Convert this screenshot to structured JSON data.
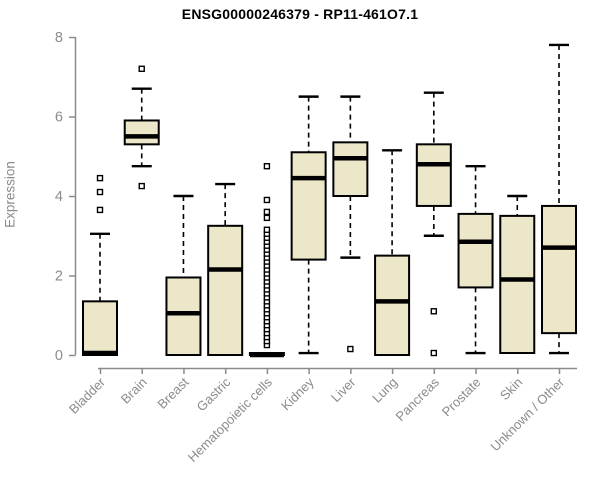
{
  "chart_data": {
    "type": "boxplot",
    "title": "ENSG00000246379 - RP11-461O7.1",
    "ylabel": "Expression",
    "xlabel": "",
    "ylim": [
      0,
      8
    ],
    "yticks": [
      0,
      2,
      4,
      6,
      8
    ],
    "grid": false,
    "legend": "none",
    "categories": [
      "Bladder",
      "Brain",
      "Breast",
      "Gastric",
      "Hematopoietic cells",
      "Kidney",
      "Liver",
      "Lung",
      "Pancreas",
      "Prostate",
      "Skin",
      "Unknown / Other"
    ],
    "boxes": [
      {
        "category": "Bladder",
        "whisker_low": 0,
        "q1": 0,
        "median": 0.05,
        "q3": 1.35,
        "whisker_high": 3.05,
        "outliers": [
          3.65,
          4.1,
          4.45
        ]
      },
      {
        "category": "Brain",
        "whisker_low": 4.75,
        "q1": 5.3,
        "median": 5.5,
        "q3": 5.9,
        "whisker_high": 6.7,
        "outliers": [
          4.25,
          7.2
        ]
      },
      {
        "category": "Breast",
        "whisker_low": 0,
        "q1": 0,
        "median": 1.05,
        "q3": 1.95,
        "whisker_high": 4.0,
        "outliers": []
      },
      {
        "category": "Gastric",
        "whisker_low": 0,
        "q1": 0,
        "median": 2.15,
        "q3": 3.25,
        "whisker_high": 4.3,
        "outliers": []
      },
      {
        "category": "Hematopoietic cells",
        "whisker_low": 0,
        "q1": 0,
        "median": 0,
        "q3": 0.05,
        "whisker_high": 0.05,
        "outliers": [
          0.25,
          0.35,
          0.45,
          0.55,
          0.65,
          0.75,
          0.85,
          0.95,
          1.05,
          1.15,
          1.25,
          1.35,
          1.45,
          1.55,
          1.65,
          1.75,
          1.85,
          1.95,
          2.05,
          2.15,
          2.25,
          2.35,
          2.45,
          2.55,
          2.65,
          2.75,
          2.85,
          2.95,
          3.05,
          3.15,
          3.45,
          3.6,
          3.9,
          4.75
        ]
      },
      {
        "category": "Kidney",
        "whisker_low": 0.05,
        "q1": 2.4,
        "median": 4.45,
        "q3": 5.1,
        "whisker_high": 6.5,
        "outliers": []
      },
      {
        "category": "Liver",
        "whisker_low": 2.45,
        "q1": 4.0,
        "median": 4.95,
        "q3": 5.35,
        "whisker_high": 6.5,
        "outliers": [
          0.15
        ]
      },
      {
        "category": "Lung",
        "whisker_low": 0,
        "q1": 0,
        "median": 1.35,
        "q3": 2.5,
        "whisker_high": 5.15,
        "outliers": []
      },
      {
        "category": "Pancreas",
        "whisker_low": 3.0,
        "q1": 3.75,
        "median": 4.8,
        "q3": 5.3,
        "whisker_high": 6.6,
        "outliers": [
          0.05,
          1.1
        ]
      },
      {
        "category": "Prostate",
        "whisker_low": 0.05,
        "q1": 1.7,
        "median": 2.85,
        "q3": 3.55,
        "whisker_high": 4.75,
        "outliers": []
      },
      {
        "category": "Skin",
        "whisker_low": 0.05,
        "q1": 0.05,
        "median": 1.9,
        "q3": 3.5,
        "whisker_high": 4.0,
        "outliers": []
      },
      {
        "category": "Unknown / Other",
        "whisker_low": 0.05,
        "q1": 0.55,
        "median": 2.7,
        "q3": 3.75,
        "whisker_high": 7.8,
        "outliers": []
      }
    ],
    "colors": {
      "box_fill": "#EDE7C9",
      "box_stroke": "#000000",
      "median": "#000000",
      "whisker": "#000000",
      "outlier_fill": "#FFFFFF",
      "axis": "#8B8B8B",
      "tick_label": "#8B8B8B",
      "title": "#000000",
      "background": "#FFFFFF"
    }
  }
}
